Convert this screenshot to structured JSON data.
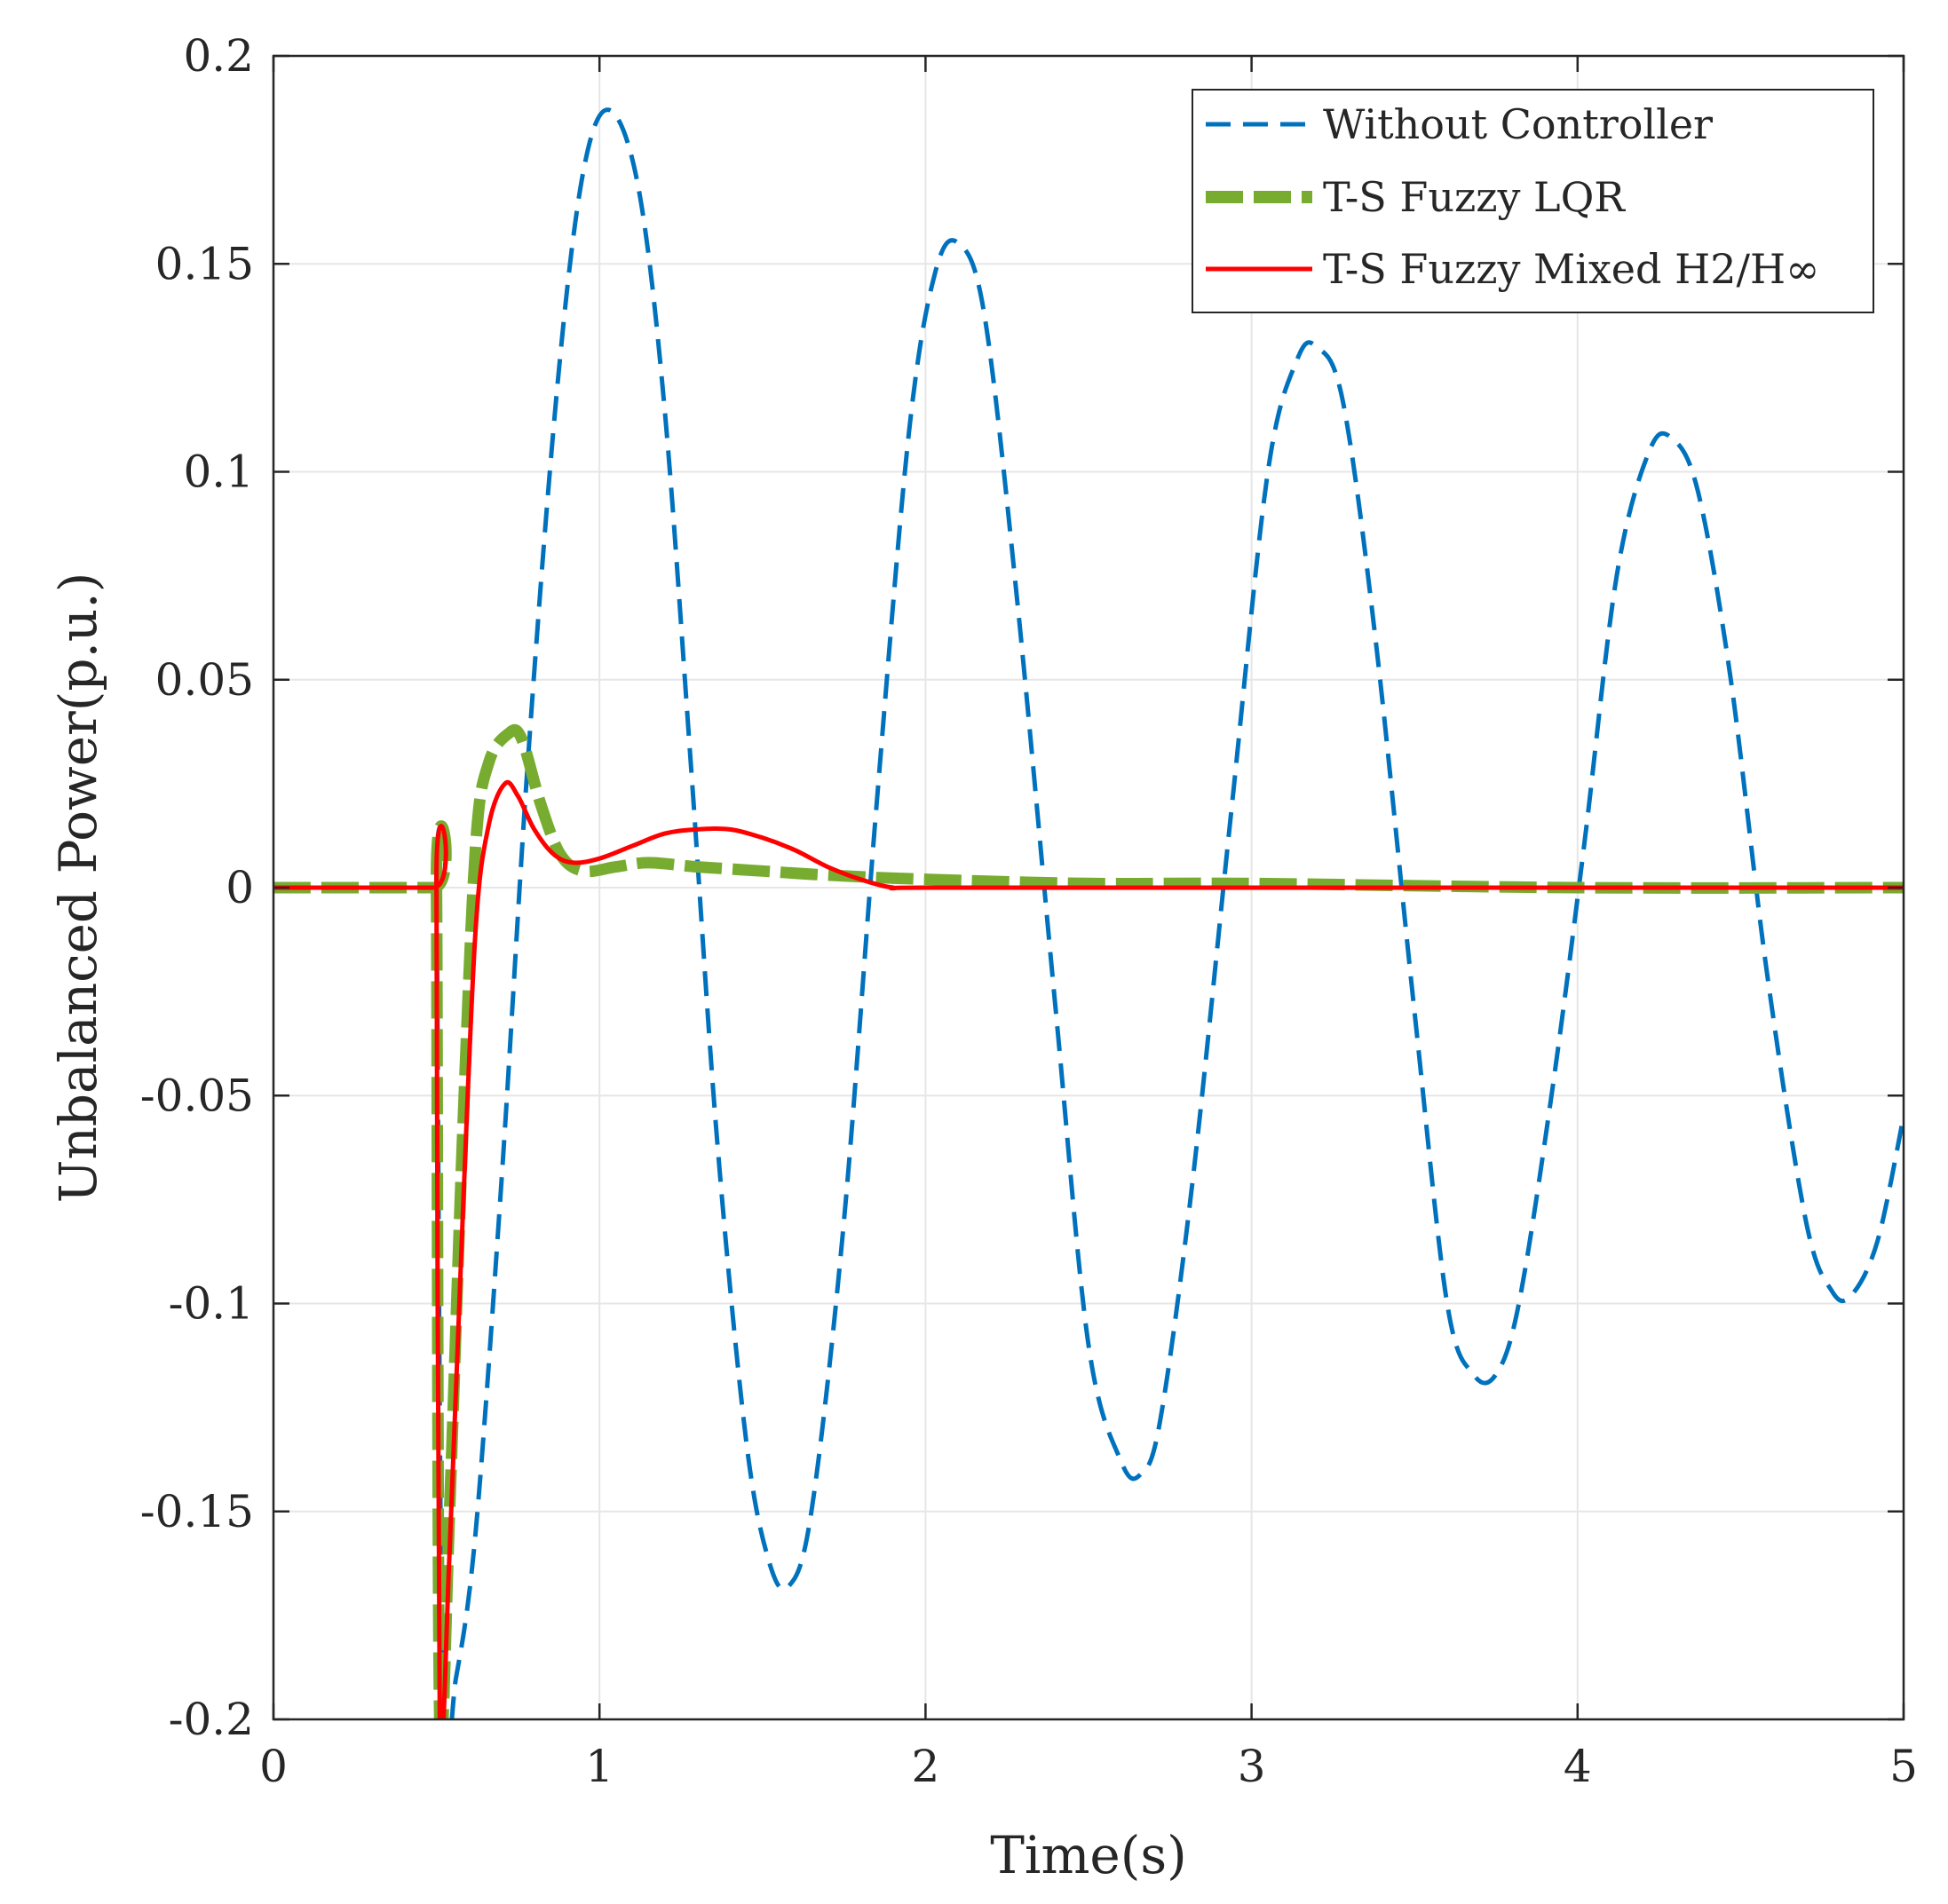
{
  "chart_data": {
    "type": "line",
    "title": "",
    "xlabel": "Time(s)",
    "ylabel": "Unbalanced Power(p.u.)",
    "xlim": [
      0,
      5
    ],
    "ylim": [
      -0.2,
      0.2
    ],
    "grid": true,
    "legend_position": "top-right",
    "x_ticks": [
      0,
      1,
      2,
      3,
      4,
      5
    ],
    "x_tick_labels": [
      "0",
      "1",
      "2",
      "3",
      "4",
      "5"
    ],
    "y_ticks": [
      0.2,
      0.15,
      0.1,
      0.05,
      0,
      -0.05,
      -0.1,
      -0.15,
      -0.2
    ],
    "y_tick_labels": [
      "0.2",
      "0.15",
      "0.1",
      "0.05",
      "0",
      "-0.05",
      "-0.1",
      "-0.15",
      "-0.2"
    ],
    "colors": {
      "without": "#0072BD",
      "lqr": "#77AC30",
      "mixed": "#FF0000",
      "axis": "#262626",
      "grid": "#e6e6e6"
    },
    "series": [
      {
        "name": "Without Controller",
        "style": "dashed",
        "color": "#0072BD",
        "points": [
          [
            0,
            0
          ],
          [
            0.49,
            0
          ],
          [
            0.5,
            0
          ],
          [
            0.52,
            -0.2
          ],
          [
            0.56,
            -0.19
          ],
          [
            0.62,
            -0.155
          ],
          [
            0.7,
            -0.07
          ],
          [
            0.78,
            0.03
          ],
          [
            0.87,
            0.12
          ],
          [
            0.95,
            0.172
          ],
          [
            1.03,
            0.187
          ],
          [
            1.12,
            0.168
          ],
          [
            1.2,
            0.115
          ],
          [
            1.28,
            0.03
          ],
          [
            1.36,
            -0.06
          ],
          [
            1.45,
            -0.133
          ],
          [
            1.52,
            -0.162
          ],
          [
            1.58,
            -0.168
          ],
          [
            1.65,
            -0.15
          ],
          [
            1.75,
            -0.08
          ],
          [
            1.85,
            0.02
          ],
          [
            1.95,
            0.11
          ],
          [
            2.03,
            0.148
          ],
          [
            2.1,
            0.155
          ],
          [
            2.18,
            0.138
          ],
          [
            2.28,
            0.07
          ],
          [
            2.4,
            -0.03
          ],
          [
            2.5,
            -0.11
          ],
          [
            2.6,
            -0.138
          ],
          [
            2.66,
            -0.141
          ],
          [
            2.72,
            -0.128
          ],
          [
            2.82,
            -0.07
          ],
          [
            2.94,
            0.02
          ],
          [
            3.05,
            0.1
          ],
          [
            3.14,
            0.127
          ],
          [
            3.2,
            0.13
          ],
          [
            3.28,
            0.117
          ],
          [
            3.38,
            0.06
          ],
          [
            3.5,
            -0.03
          ],
          [
            3.6,
            -0.1
          ],
          [
            3.68,
            -0.117
          ],
          [
            3.75,
            -0.117
          ],
          [
            3.82,
            -0.1
          ],
          [
            3.92,
            -0.05
          ],
          [
            4.02,
            0.01
          ],
          [
            4.12,
            0.075
          ],
          [
            4.22,
            0.105
          ],
          [
            4.29,
            0.108
          ],
          [
            4.37,
            0.095
          ],
          [
            4.47,
            0.05
          ],
          [
            4.58,
            -0.02
          ],
          [
            4.7,
            -0.08
          ],
          [
            4.78,
            -0.097
          ],
          [
            4.84,
            -0.098
          ],
          [
            4.92,
            -0.085
          ],
          [
            5.0,
            -0.055
          ]
        ]
      },
      {
        "name": "T-S Fuzzy LQR",
        "style": "thick-dashed",
        "color": "#77AC30",
        "points": [
          [
            0,
            0
          ],
          [
            0.49,
            0
          ],
          [
            0.5,
            0
          ],
          [
            0.51,
            -0.2
          ],
          [
            0.54,
            -0.15
          ],
          [
            0.58,
            -0.06
          ],
          [
            0.62,
            0.01
          ],
          [
            0.66,
            0.03
          ],
          [
            0.72,
            0.037
          ],
          [
            0.76,
            0.036
          ],
          [
            0.82,
            0.02
          ],
          [
            0.88,
            0.008
          ],
          [
            0.95,
            0.004
          ],
          [
            1.05,
            0.005
          ],
          [
            1.15,
            0.006
          ],
          [
            1.3,
            0.005
          ],
          [
            1.5,
            0.004
          ],
          [
            1.7,
            0.003
          ],
          [
            2.0,
            0.002
          ],
          [
            2.5,
            0.001
          ],
          [
            3.0,
            0.001
          ],
          [
            4.0,
            0.0
          ],
          [
            5.0,
            0.0
          ]
        ]
      },
      {
        "name": "T-S Fuzzy Mixed H2/H∞",
        "style": "solid",
        "color": "#FF0000",
        "points": [
          [
            0,
            0
          ],
          [
            0.49,
            0
          ],
          [
            0.5,
            0
          ],
          [
            0.51,
            -0.2
          ],
          [
            0.54,
            -0.16
          ],
          [
            0.58,
            -0.08
          ],
          [
            0.62,
            -0.01
          ],
          [
            0.66,
            0.015
          ],
          [
            0.71,
            0.025
          ],
          [
            0.75,
            0.022
          ],
          [
            0.8,
            0.014
          ],
          [
            0.86,
            0.008
          ],
          [
            0.92,
            0.006
          ],
          [
            1.0,
            0.007
          ],
          [
            1.1,
            0.01
          ],
          [
            1.2,
            0.013
          ],
          [
            1.3,
            0.014
          ],
          [
            1.4,
            0.014
          ],
          [
            1.5,
            0.012
          ],
          [
            1.6,
            0.009
          ],
          [
            1.7,
            0.005
          ],
          [
            1.8,
            0.002
          ],
          [
            1.9,
            0.0
          ],
          [
            2.0,
            0.0
          ],
          [
            3.0,
            0.0
          ],
          [
            4.0,
            0.0
          ],
          [
            5.0,
            0.0
          ]
        ]
      }
    ]
  }
}
